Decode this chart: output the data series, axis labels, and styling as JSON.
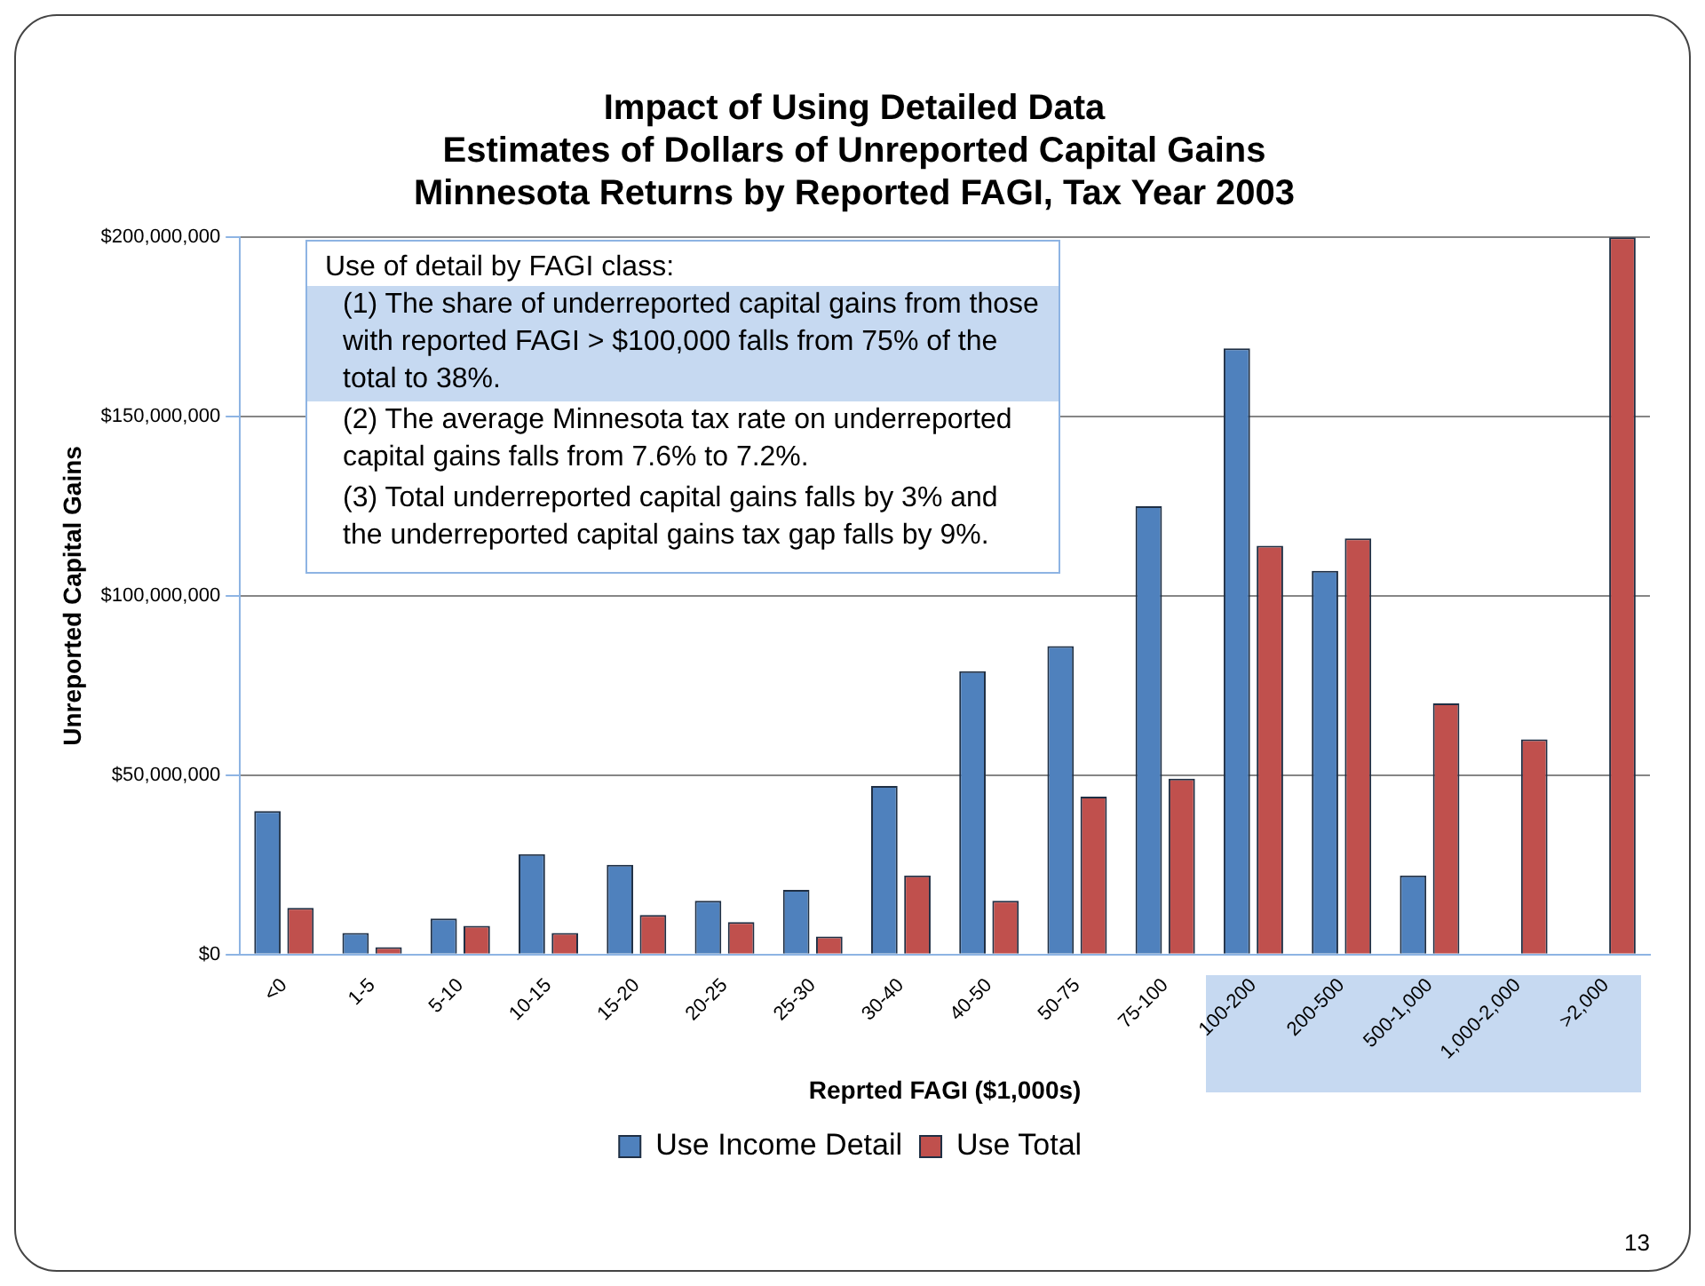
{
  "chart_data": {
    "type": "bar",
    "title": "Impact of Using Detailed Data",
    "subtitle": "Estimates of Dollars of Unreported Capital Gains\nMinnesota Returns by Reported FAGI, Tax Year 2003",
    "xlabel": "Reprted FAGI ($1,000s)",
    "ylabel": "Unreported Capital Gains",
    "categories": [
      "<0",
      "1-5",
      "5-10",
      "10-15",
      "15-20",
      "20-25",
      "25-30",
      "30-40",
      "40-50",
      "50-75",
      "75-100",
      "100-200",
      "200-500",
      "500-1,000",
      "1,000-2,000",
      ">2,000"
    ],
    "series": [
      {
        "name": "Use Income Detail",
        "color": "#4f81bd",
        "values": [
          40000000,
          6000000,
          10000000,
          28000000,
          25000000,
          15000000,
          18000000,
          47000000,
          79000000,
          86000000,
          125000000,
          169000000,
          107000000,
          22000000,
          0,
          0
        ]
      },
      {
        "name": "Use Total",
        "color": "#c0504d",
        "values": [
          13000000,
          2000000,
          8000000,
          6000000,
          11000000,
          9000000,
          5000000,
          22000000,
          15000000,
          44000000,
          49000000,
          114000000,
          116000000,
          70000000,
          60000000,
          200000000
        ]
      }
    ],
    "ylim": [
      0,
      200000000
    ],
    "yticks": [
      {
        "value": 0,
        "label": "$0"
      },
      {
        "value": 50000000,
        "label": "$50,000,000"
      },
      {
        "value": 100000000,
        "label": "$100,000,000"
      },
      {
        "value": 150000000,
        "label": "$150,000,000"
      },
      {
        "value": 200000000,
        "label": "$200,000,000"
      }
    ],
    "grid": "y",
    "legend": "bottom",
    "annotations": [
      "Use of detail by FAGI class:",
      "(1) The share of underreported capital gains from those with reported FAGI > $100,000 falls from 75% of the total to 38%.",
      "(2) The average Minnesota tax rate  on underreported capital gains falls from 7.6% to 7.2%.",
      "(3) Total underreported capital gains falls by 3% and the underreported capital gains tax gap falls by 9%.",
      "13"
    ]
  }
}
